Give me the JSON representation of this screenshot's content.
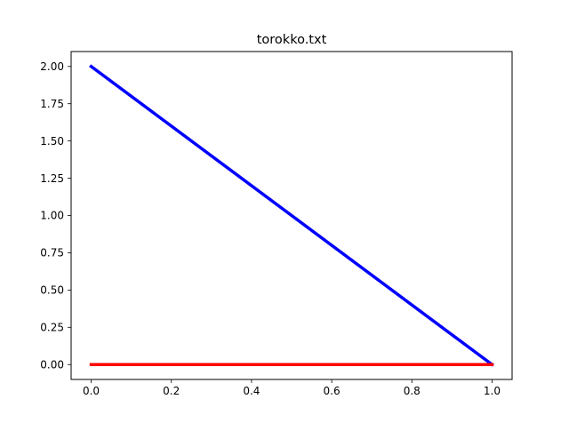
{
  "chart_data": {
    "type": "line",
    "title": "torokko.txt",
    "xlabel": "",
    "ylabel": "",
    "xlim": [
      -0.05,
      1.05
    ],
    "ylim": [
      -0.1,
      2.1
    ],
    "xticks": [
      0.0,
      0.2,
      0.4,
      0.6,
      0.8,
      1.0
    ],
    "yticks": [
      0.0,
      0.25,
      0.5,
      0.75,
      1.0,
      1.25,
      1.5,
      1.75,
      2.0
    ],
    "xtick_labels": [
      "0.0",
      "0.2",
      "0.4",
      "0.6",
      "0.8",
      "1.0"
    ],
    "ytick_labels": [
      "0.00",
      "0.25",
      "0.50",
      "0.75",
      "1.00",
      "1.25",
      "1.50",
      "1.75",
      "2.00"
    ],
    "grid": false,
    "series": [
      {
        "color": "#0000ff",
        "x": [
          0,
          1
        ],
        "y": [
          2,
          0
        ]
      },
      {
        "color": "#ff0000",
        "x": [
          0,
          1
        ],
        "y": [
          0,
          0
        ]
      }
    ]
  }
}
